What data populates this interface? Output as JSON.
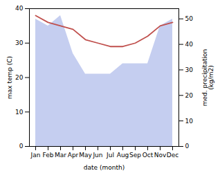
{
  "chart_data": {
    "type": "line",
    "xlabel": "date (month)",
    "ylabel": "max temp (C)",
    "y2label": "med. precipitation\n(kg/m2)",
    "categories": [
      "Jan",
      "Feb",
      "Mar",
      "Apr",
      "May",
      "Jun",
      "Jul",
      "Aug",
      "Sep",
      "Oct",
      "Nov",
      "Dec"
    ],
    "series": [
      {
        "type": "area",
        "color": "#c5cef0",
        "values": [
          37,
          35,
          38,
          27,
          21,
          21,
          21,
          24,
          24,
          24,
          35,
          37
        ]
      },
      {
        "type": "line",
        "color": "#c0504d",
        "values": [
          38,
          36,
          35,
          34,
          31,
          30,
          29,
          29,
          30,
          32,
          35,
          36
        ]
      }
    ],
    "ylim": [
      0,
      40
    ],
    "yticks": [
      0,
      10,
      20,
      30,
      40
    ],
    "y2lim": [
      0,
      54
    ],
    "y2ticks": [
      0,
      10,
      20,
      30,
      40,
      50
    ],
    "grid": false
  }
}
